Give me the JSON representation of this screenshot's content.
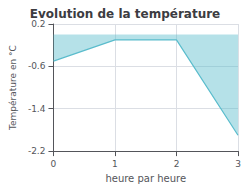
{
  "chart_data": {
    "type": "line",
    "title": "Evolution de la température",
    "xlabel": "heure par heure",
    "ylabel": "Température en °C",
    "x": [
      0,
      1,
      2,
      3
    ],
    "values": [
      -0.5,
      -0.1,
      -0.1,
      -1.9
    ],
    "color": "#5abccc",
    "xlim": [
      0,
      3
    ],
    "xticks": [
      0,
      1,
      2,
      3
    ],
    "ylim": [
      -2.2,
      0.2
    ],
    "yticks": [
      0.2,
      -0.6,
      -1.4,
      -2.2
    ],
    "grid": true
  }
}
